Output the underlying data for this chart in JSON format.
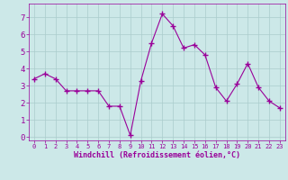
{
  "x": [
    0,
    1,
    2,
    3,
    4,
    5,
    6,
    7,
    8,
    9,
    10,
    11,
    12,
    13,
    14,
    15,
    16,
    17,
    18,
    19,
    20,
    21,
    22,
    23
  ],
  "y": [
    3.4,
    3.7,
    3.4,
    2.7,
    2.7,
    2.7,
    2.7,
    1.8,
    1.8,
    0.1,
    3.3,
    5.5,
    7.2,
    6.5,
    5.2,
    5.4,
    4.8,
    2.9,
    2.1,
    3.1,
    4.3,
    2.9,
    2.1,
    1.7
  ],
  "line_color": "#990099",
  "marker": "+",
  "marker_size": 4,
  "bg_color": "#cce8e8",
  "grid_color": "#aacccc",
  "xlabel": "Windchill (Refroidissement éolien,°C)",
  "xlabel_color": "#990099",
  "tick_color": "#990099",
  "label_color": "#990099",
  "ylim": [
    -0.2,
    7.8
  ],
  "xlim": [
    -0.5,
    23.5
  ],
  "yticks": [
    0,
    1,
    2,
    3,
    4,
    5,
    6,
    7
  ],
  "xticks": [
    0,
    1,
    2,
    3,
    4,
    5,
    6,
    7,
    8,
    9,
    10,
    11,
    12,
    13,
    14,
    15,
    16,
    17,
    18,
    19,
    20,
    21,
    22,
    23
  ]
}
